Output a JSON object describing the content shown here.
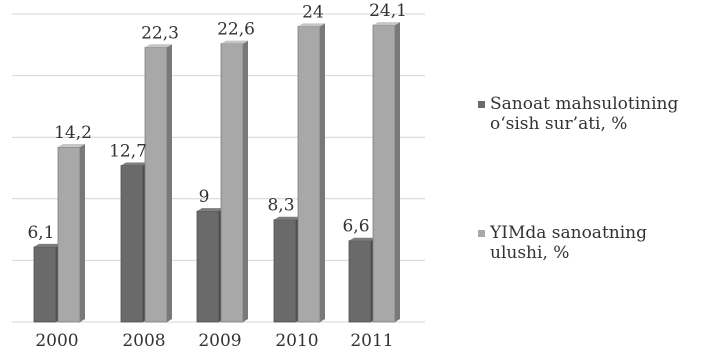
{
  "chart_data": {
    "type": "bar",
    "categories": [
      "2000",
      "2008",
      "2009",
      "2010",
      "2011"
    ],
    "series": [
      {
        "name": "Sanoat mahsulotining o‘sish sur’ati, %",
        "values": [
          6.1,
          12.7,
          9,
          8.3,
          6.6
        ],
        "labels": [
          "6,1",
          "12,7",
          "9",
          "8,3",
          "6,6"
        ],
        "color": "#6a6a6a"
      },
      {
        "name": "YIMda sanoatning ulushi, %",
        "values": [
          14.2,
          22.3,
          22.6,
          24,
          24.1
        ],
        "labels": [
          "14,2",
          "22,3",
          "22,6",
          "24",
          "24,1"
        ],
        "color": "#a8a8a8"
      }
    ],
    "ylim": [
      0,
      25
    ],
    "grid": true,
    "legend": "right",
    "three_d": true
  }
}
